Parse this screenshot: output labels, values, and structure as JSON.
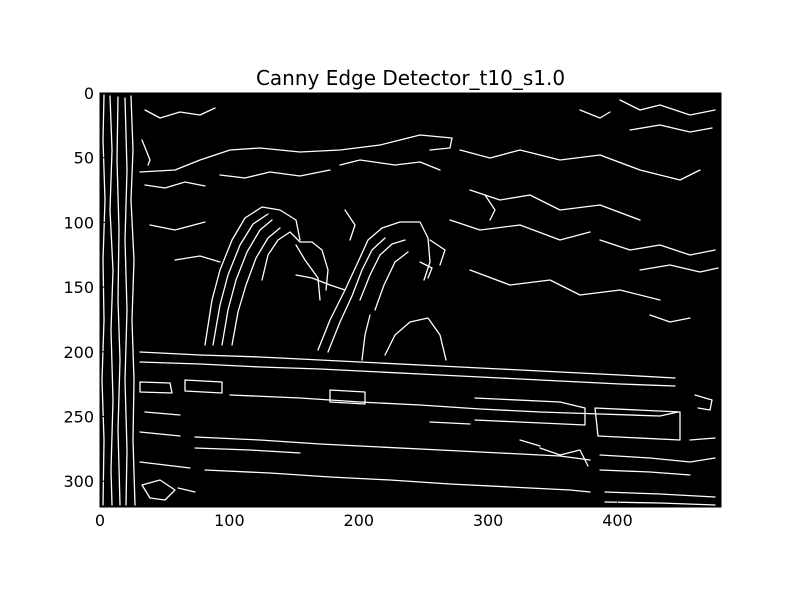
{
  "figure": {
    "title": "Canny Edge Detector_t10_s1.0",
    "image_description_kind": "edge-map",
    "image_background": "#000000",
    "edge_color": "#ffffff",
    "x_axis": {
      "ticks": [
        0,
        100,
        200,
        300,
        400
      ],
      "range": [
        0,
        480
      ]
    },
    "y_axis": {
      "ticks": [
        0,
        50,
        100,
        150,
        200,
        250,
        300
      ],
      "range": [
        0,
        320
      ],
      "inverted": true
    }
  }
}
